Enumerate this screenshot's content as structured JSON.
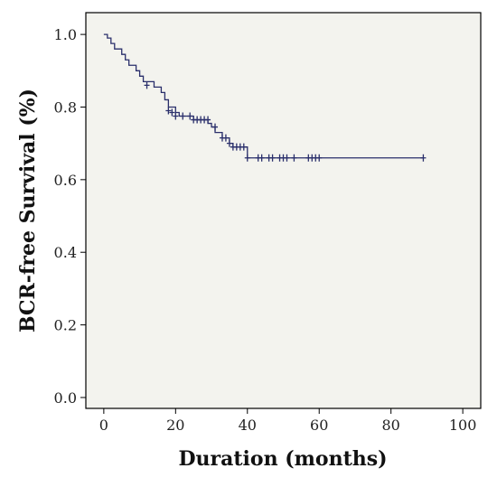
{
  "chart_data": {
    "type": "line",
    "title": "",
    "xlabel": "Duration (months)",
    "ylabel": "BCR-free Survival (%)",
    "xlim": [
      -5,
      105
    ],
    "ylim": [
      -0.03,
      1.06
    ],
    "xticks": [
      0,
      20,
      40,
      60,
      80,
      100
    ],
    "xtick_labels": [
      "0",
      "20",
      "40",
      "60",
      "80",
      "100"
    ],
    "yticks": [
      0.0,
      0.2,
      0.4,
      0.6,
      0.8,
      1.0
    ],
    "ytick_labels": [
      "0.0",
      "0.2",
      "0.4",
      "0.6",
      "0.8",
      "1.0"
    ],
    "grid": false,
    "series": [
      {
        "line_color": "#2a2f6b",
        "step_x": [
          0,
          1,
          2,
          3,
          5,
          6,
          7,
          9,
          10,
          11,
          14,
          16,
          17,
          18,
          20,
          21,
          25,
          29,
          30,
          31,
          33,
          35,
          36,
          40,
          89
        ],
        "step_y": [
          1.0,
          0.99,
          0.975,
          0.96,
          0.945,
          0.93,
          0.915,
          0.9,
          0.885,
          0.87,
          0.855,
          0.84,
          0.82,
          0.8,
          0.785,
          0.775,
          0.765,
          0.755,
          0.745,
          0.73,
          0.715,
          0.7,
          0.69,
          0.66,
          0.66
        ],
        "censor_x": [
          12,
          18,
          19,
          20,
          22,
          24,
          25,
          26,
          27,
          28,
          29,
          31,
          33,
          34,
          35,
          36,
          37,
          38,
          39,
          40,
          43,
          44,
          46,
          47,
          49,
          50,
          51,
          53,
          57,
          58,
          59,
          60,
          89
        ],
        "censor_y": [
          0.86,
          0.79,
          0.785,
          0.775,
          0.775,
          0.775,
          0.765,
          0.765,
          0.765,
          0.765,
          0.765,
          0.745,
          0.715,
          0.715,
          0.7,
          0.69,
          0.69,
          0.69,
          0.69,
          0.66,
          0.66,
          0.66,
          0.66,
          0.66,
          0.66,
          0.66,
          0.66,
          0.66,
          0.66,
          0.66,
          0.66,
          0.66,
          0.66
        ]
      }
    ]
  }
}
